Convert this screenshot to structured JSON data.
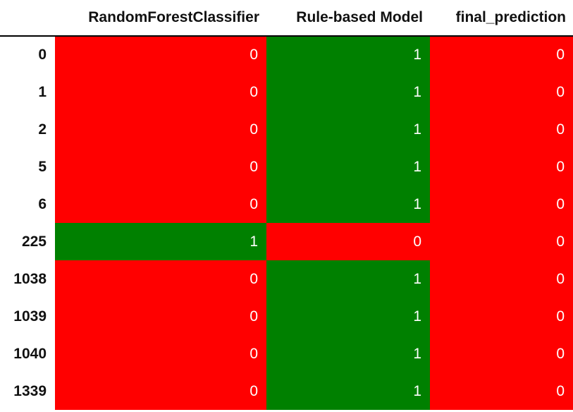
{
  "colors": {
    "zero": "#ff0000",
    "one": "#008000",
    "cell_text": "#ffffff"
  },
  "columns": [
    "RandomForestClassifier",
    "Rule-based Model",
    "final_prediction"
  ],
  "rows": [
    {
      "index": "0",
      "values": [
        "0",
        "1",
        "0"
      ]
    },
    {
      "index": "1",
      "values": [
        "0",
        "1",
        "0"
      ]
    },
    {
      "index": "2",
      "values": [
        "0",
        "1",
        "0"
      ]
    },
    {
      "index": "5",
      "values": [
        "0",
        "1",
        "0"
      ]
    },
    {
      "index": "6",
      "values": [
        "0",
        "1",
        "0"
      ]
    },
    {
      "index": "225",
      "values": [
        "1",
        "0",
        "0"
      ]
    },
    {
      "index": "1038",
      "values": [
        "0",
        "1",
        "0"
      ]
    },
    {
      "index": "1039",
      "values": [
        "0",
        "1",
        "0"
      ]
    },
    {
      "index": "1040",
      "values": [
        "0",
        "1",
        "0"
      ]
    },
    {
      "index": "1339",
      "values": [
        "0",
        "1",
        "0"
      ]
    }
  ]
}
